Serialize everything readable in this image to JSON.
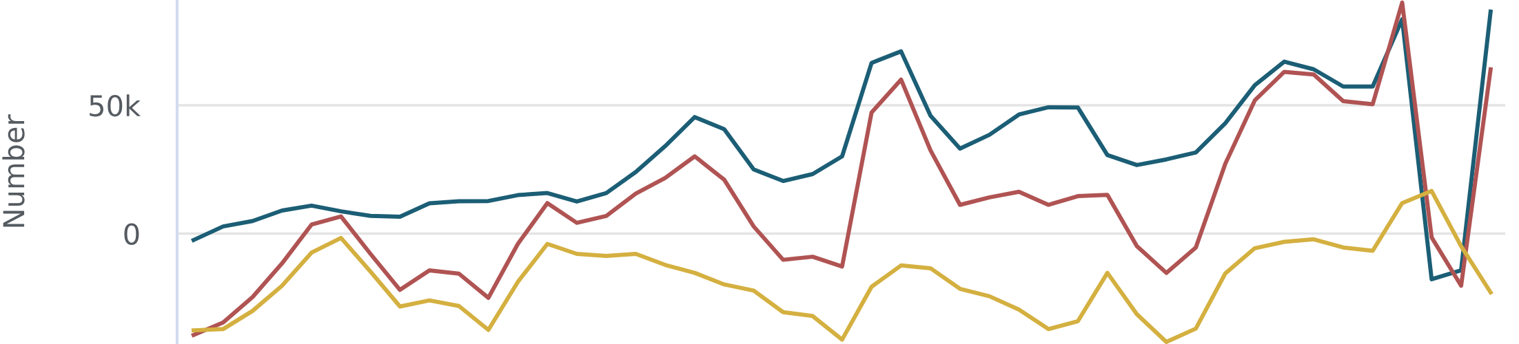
{
  "chart_data": {
    "type": "line",
    "ylabel": "Number",
    "categories": [
      null,
      null,
      null,
      null,
      null,
      null,
      null,
      null,
      null,
      null,
      null,
      null,
      null,
      null,
      null,
      null,
      null,
      null,
      null,
      null,
      null,
      null,
      null,
      null,
      null,
      null,
      null,
      null,
      null,
      null,
      null,
      null,
      null,
      null,
      null,
      null,
      null,
      null,
      null,
      null,
      null,
      null,
      null,
      null,
      null
    ],
    "series": [
      {
        "color": "#1b5e75",
        "values": [
          -2500,
          2800,
          4900,
          9000,
          10900,
          8700,
          6900,
          6600,
          11800,
          12600,
          12700,
          15000,
          15800,
          12500,
          15800,
          24000,
          34100,
          45400,
          40700,
          25000,
          20500,
          23200,
          30100,
          66500,
          71000,
          45900,
          33100,
          38500,
          46400,
          49200,
          49100,
          30600,
          26700,
          28900,
          31600,
          43000,
          57800,
          67000,
          64000,
          57300,
          57300,
          83500,
          -17800,
          -14300,
          86500
        ]
      },
      {
        "color": "#b05353",
        "values": [
          -39500,
          -34600,
          -24700,
          -11600,
          3500,
          6700,
          -7900,
          -21900,
          -14300,
          -15600,
          -25000,
          -4000,
          11900,
          4200,
          6900,
          15600,
          21700,
          30100,
          21000,
          2800,
          -10200,
          -9000,
          -12800,
          47200,
          60000,
          32400,
          11200,
          14100,
          16300,
          11200,
          14600,
          15100,
          -4900,
          -15300,
          -5400,
          27200,
          51900,
          63000,
          62000,
          51600,
          50400,
          90000,
          -1500,
          -20300,
          64000
        ]
      },
      {
        "color": "#d4b040",
        "values": [
          -37700,
          -37200,
          -30100,
          -20300,
          -7400,
          -1700,
          -14800,
          -28400,
          -26000,
          -28200,
          -37500,
          -18800,
          -4000,
          -7900,
          -8700,
          -7900,
          -12200,
          -15300,
          -19800,
          -22200,
          -30600,
          -32100,
          -41300,
          -20700,
          -12400,
          -13500,
          -21500,
          -24400,
          -29600,
          -37200,
          -34100,
          -15300,
          -31400,
          -42200,
          -37000,
          -15500,
          -5700,
          -3200,
          -2200,
          -5400,
          -6700,
          11900,
          16600,
          -4900,
          -22900
        ]
      }
    ],
    "ylim": [
      -43000,
      91000
    ],
    "yticks": [
      0,
      {
        "value": 50000,
        "label": "50k"
      }
    ],
    "grid": "y",
    "line_style": "solid",
    "marker": "none",
    "legend": false
  }
}
